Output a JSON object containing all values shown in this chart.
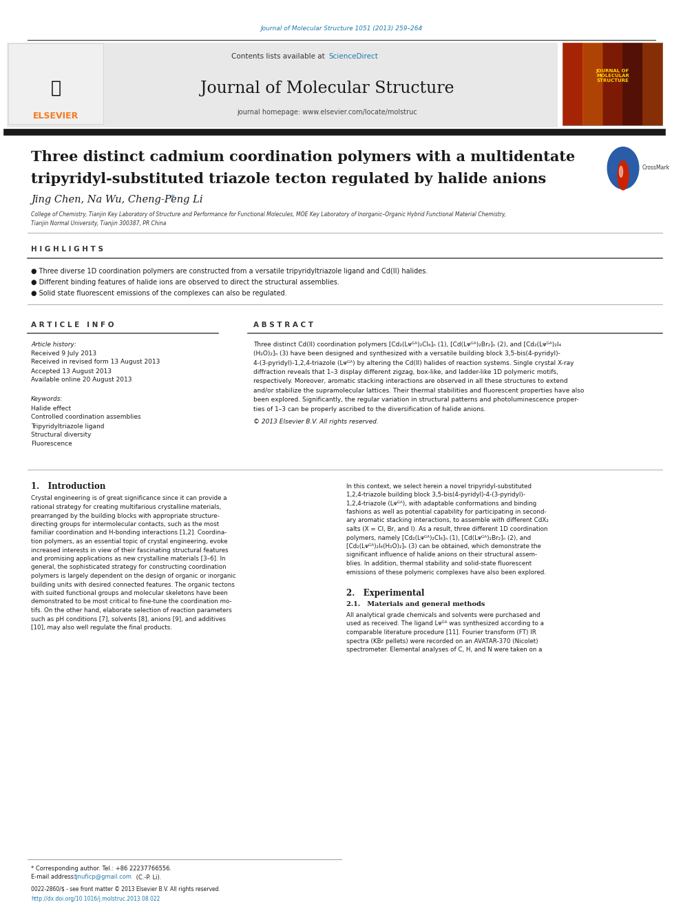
{
  "page_width": 9.92,
  "page_height": 13.23,
  "bg_color": "#ffffff",
  "journal_ref": "Journal of Molecular Structure 1051 (2013) 259–264",
  "journal_ref_color": "#1a7aad",
  "contents_text": "Contents lists available at ",
  "sciencedirect_text": "ScienceDirect",
  "sciencedirect_color": "#1a7aad",
  "journal_name": "Journal of Molecular Structure",
  "journal_homepage": "journal homepage: www.elsevier.com/locate/molstruc",
  "header_bg": "#e8e8e8",
  "title_line1": "Three distinct cadmium coordination polymers with a multidentate",
  "title_line2": "tripyridyl-substituted triazole tecton regulated by halide anions",
  "authors": "Jing Chen, Na Wu, Cheng-Peng Li",
  "affiliation_line1": "College of Chemistry, Tianjin Key Laboratory of Structure and Performance for Functional Molecules, MOE Key Laboratory of Inorganic–Organic Hybrid Functional Material Chemistry,",
  "affiliation_line2": "Tianjin Normal University, Tianjin 300387, PR China",
  "highlights_title": "H I G H L I G H T S",
  "highlight1": "● Three diverse 1D coordination polymers are constructed from a versatile tripyridyltriazole ligand and Cd(II) halides.",
  "highlight2": "● Different binding features of halide ions are observed to direct the structural assemblies.",
  "highlight3": "● Solid state fluorescent emissions of the complexes can also be regulated.",
  "article_info_title": "A R T I C L E   I N F O",
  "abstract_title": "A B S T R A C T",
  "article_history_label": "Article history:",
  "received": "Received 9 July 2013",
  "received_revised": "Received in revised form 13 August 2013",
  "accepted": "Accepted 13 August 2013",
  "available": "Available online 20 August 2013",
  "keywords_label": "Keywords:",
  "keyword1": "Halide effect",
  "keyword2": "Controlled coordination assemblies",
  "keyword3": "Tripyridyltriazole ligand",
  "keyword4": "Structural diversity",
  "keyword5": "Fluorescence",
  "abstract_lines": [
    "Three distinct Cd(II) coordination polymers [Cd₂(Lᴪᴳᴬ)₂Cl₆]ₙ (1), [Cd(Lᴪᴳᴬ)₂Br₂]ₙ (2), and [Cd₂(Lᴪᴳᴬ)₂I₄",
    "(H₂O)₂]ₙ (3) have been designed and synthesized with a versatile building block 3,5-bis(4-pyridyl)-",
    "4-(3-pyridyl)-1,2,4-triazole (Lᴪᴳᴬ) by altering the Cd(II) halides of reaction systems. Single crystal X-ray",
    "diffraction reveals that 1–3 display different zigzag, box-like, and ladder-like 1D polymeric motifs,",
    "respectively. Moreover, aromatic stacking interactions are observed in all these structures to extend",
    "and/or stabilize the supramolecular lattices. Their thermal stabilities and fluorescent properties have also",
    "been explored. Significantly, the regular variation in structural patterns and photoluminescence proper-",
    "ties of 1–3 can be properly ascribed to the diversification of halide anions."
  ],
  "copyright": "© 2013 Elsevier B.V. All rights reserved.",
  "intro_title": "1.   Introduction",
  "intro_para1_lines": [
    "Crystal engineering is of great significance since it can provide a",
    "rational strategy for creating multifarious crystalline materials,",
    "prearranged by the building blocks with appropriate structure-",
    "directing groups for intermolecular contacts, such as the most",
    "familiar coordination and H-bonding interactions [1,2]. Coordina-",
    "tion polymers, as an essential topic of crystal engineering, evoke",
    "increased interests in view of their fascinating structural features",
    "and promising applications as new crystalline materials [3–6]. In",
    "general, the sophisticated strategy for constructing coordination",
    "polymers is largely dependent on the design of organic or inorganic",
    "building units with desired connected features. The organic tectons",
    "with suited functional groups and molecular skeletons have been",
    "demonstrated to be most critical to fine-tune the coordination mo-",
    "tifs. On the other hand, elaborate selection of reaction parameters",
    "such as pH conditions [7], solvents [8], anions [9], and additives",
    "[10], may also well regulate the final products."
  ],
  "intro_para2_lines": [
    "In this context, we select herein a novel tripyridyl-substituted",
    "1,2,4-triazole building block 3,5-bis(4-pyridyl)-4-(3-pyridyl)-",
    "1,2,4-triazole (Lᴪᴳᴬ), with adaptable conformations and binding",
    "fashions as well as potential capability for participating in second-",
    "ary aromatic stacking interactions, to assemble with different CdX₂",
    "salts (X = Cl, Br, and I). As a result, three different 1D coordination",
    "polymers, namely [Cd₂(Lᴪᴳᴬ)₂Cl₆]ₙ (1), [Cd(Lᴪᴳᴬ)₂Br₂]ₙ (2), and",
    "[Cd₂(Lᴪᴳᴬ)₂I₄(H₂O)₂]ₙ (3) can be obtained, which demonstrate the",
    "significant influence of halide anions on their structural assem-",
    "blies. In addition, thermal stability and solid-state fluorescent",
    "emissions of these polymeric complexes have also been explored."
  ],
  "exp_title": "2.   Experimental",
  "exp_sub_title": "2.1.   Materials and general methods",
  "exp_para_lines": [
    "All analytical grade chemicals and solvents were purchased and",
    "used as received. The ligand Lᴪᴳᴬ was synthesized according to a",
    "comparable literature procedure [11]. Fourier transform (FT) IR",
    "spectra (KBr pellets) were recorded on an AVATAR-370 (Nicolet)",
    "spectrometer. Elemental analyses of C, H, and N were taken on a"
  ],
  "footnote": "* Corresponding author. Tel.: +86 22237766556.",
  "email_label": "E-mail address:",
  "email": "tjnuficp@gmail.com",
  "email_color": "#1a7aad",
  "email_suffix": " (C.-P. Li).",
  "copyright_footer": "0022-2860/$ - see front matter © 2013 Elsevier B.V. All rights reserved.",
  "doi": "http://dx.doi.org/10.1016/j.molstruc.2013.08.022",
  "doi_color": "#1a7aad",
  "elsevier_orange": "#f47920",
  "crossmark_blue": "#2a5ca8",
  "dark_bar_color": "#1a1a1a"
}
